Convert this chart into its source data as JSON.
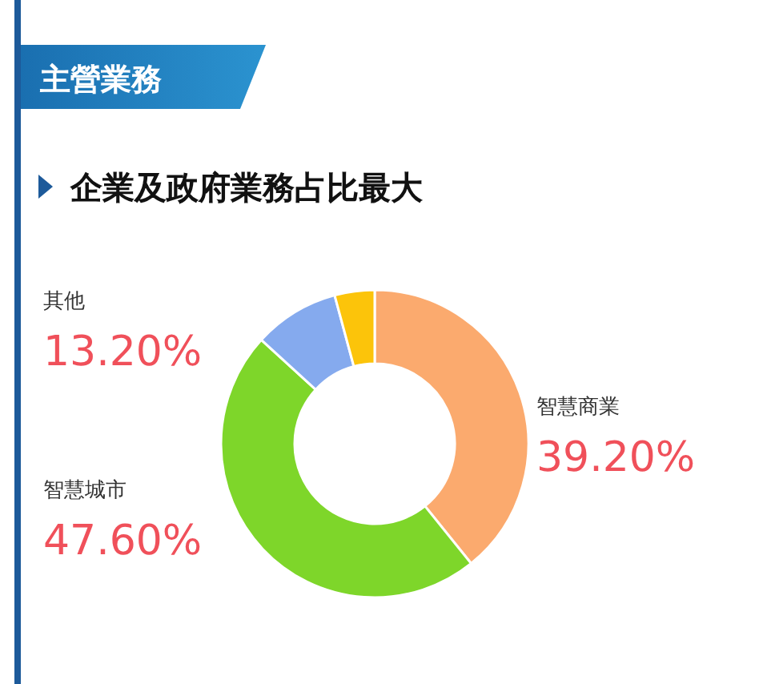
{
  "chart_data": {
    "type": "donut",
    "title": "主營業務",
    "subtitle": "企業及政府業務占比最大",
    "categories": [
      "智慧商業",
      "智慧城市",
      null,
      null
    ],
    "values": [
      39.2,
      47.6,
      9.0,
      4.2
    ],
    "value_labels": [
      "39.20%",
      "47.60%",
      null,
      null
    ],
    "annotations": [
      "其他",
      "13.20%"
    ],
    "colors": [
      "#fbaa6e",
      "#7ed62a",
      "#85aaee",
      "#fcc40a"
    ]
  }
}
